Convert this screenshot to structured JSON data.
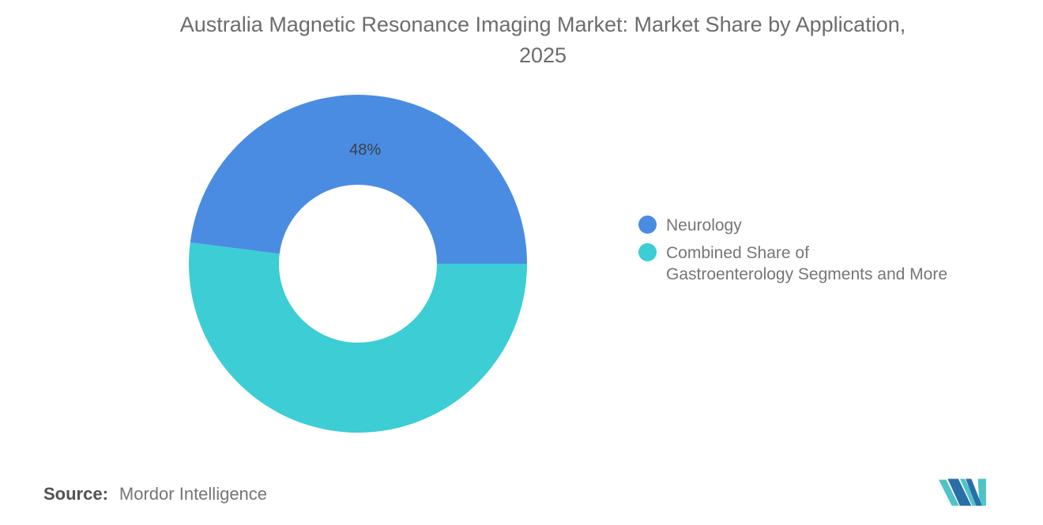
{
  "title": {
    "line1": "Australia Magnetic Resonance Imaging Market: Market Share by Application,",
    "line2": "2025"
  },
  "chart_data": {
    "type": "pie",
    "subtype": "donut",
    "title": "Australia Magnetic Resonance Imaging Market: Market Share by Application, 2025",
    "unit": "%",
    "slices": [
      {
        "id": "neurology",
        "label": "Neurology",
        "value": 48,
        "color": "#4A8CE2",
        "data_label": "48%"
      },
      {
        "id": "combined-gastroenterology-and-more",
        "label": "Combined Share of Gastroenterology Segments and More",
        "value": 52,
        "color": "#3CCDD5",
        "data_label": ""
      }
    ],
    "start_angle_deg": 0,
    "direction": "counterclockwise",
    "inner_radius_ratio": 0.467,
    "data_label_color": "#3d3f45",
    "legend_position": "right",
    "grid": false
  },
  "legend": {
    "items": [
      {
        "label": "Neurology",
        "lines": [
          "Neurology"
        ],
        "color": "#4A8CE2"
      },
      {
        "label": "Combined Share of Gastroenterology Segments and More",
        "lines": [
          "Combined Share of",
          "Gastroenterology Segments and More"
        ],
        "color": "#3CCDD5"
      }
    ]
  },
  "source": {
    "label": "Source:",
    "value": "Mordor Intelligence"
  },
  "logo": {
    "alt": "Mordor Intelligence logo",
    "colors": {
      "blue": "#2A6EA8",
      "teal": "#50C3C8"
    }
  }
}
